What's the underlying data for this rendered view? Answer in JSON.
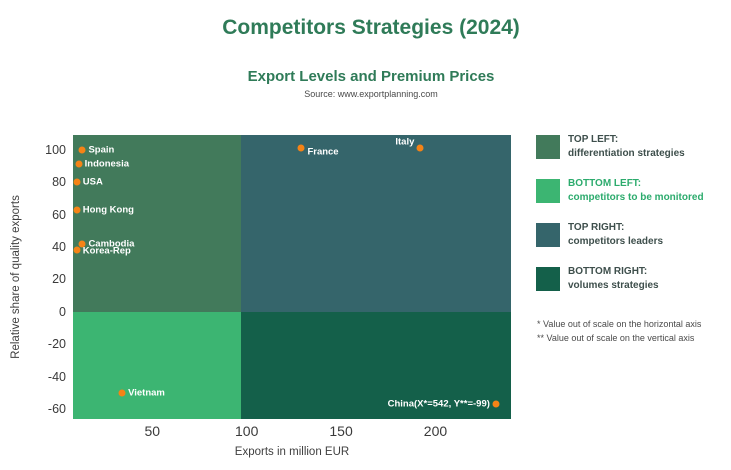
{
  "header": {
    "title": "Competitors Strategies (2024)",
    "subtitle": "Export Levels and Premium Prices",
    "source": "Source: www.exportplanning.com",
    "title_color": "#2f7b58"
  },
  "chart_data": {
    "type": "scatter",
    "title": "Competitors Strategies (2024)",
    "subtitle": "Export Levels and Premium Prices",
    "xlabel": "Exports in million EUR",
    "ylabel": "Relative share of quality exports",
    "x_ticks": [
      50,
      100,
      150,
      200
    ],
    "y_ticks": [
      100,
      80,
      60,
      40,
      20,
      0,
      -20,
      -40,
      -60
    ],
    "xlim": [
      8,
      240
    ],
    "ylim": [
      -66,
      109
    ],
    "grid": false,
    "legend_position": "right",
    "quadrant_split": {
      "x": 97,
      "y": 0
    },
    "quadrant_colors": {
      "top_left": "#427a5b",
      "top_right": "#35656b",
      "bottom_left": "#3cb572",
      "bottom_right": "#14604a"
    },
    "point_color": "#f58316",
    "points": [
      {
        "name": "Spain",
        "x": 13,
        "y": 100,
        "label": "Spain",
        "label_side": "right",
        "label_dy": 0
      },
      {
        "name": "Indonesia",
        "x": 11,
        "y": 91,
        "label": "Indonesia",
        "label_side": "right",
        "label_dy": 0
      },
      {
        "name": "USA",
        "x": 10,
        "y": 80,
        "label": "USA",
        "label_side": "right",
        "label_dy": 0
      },
      {
        "name": "Hong Kong",
        "x": 10,
        "y": 63,
        "label": "Hong Kong",
        "label_side": "right",
        "label_dy": 0
      },
      {
        "name": "Cambodia",
        "x": 13,
        "y": 42,
        "label": "Cambodia",
        "label_side": "right",
        "label_dy": 0
      },
      {
        "name": "Korea-Rep",
        "x": 10,
        "y": 38,
        "label": "Korea-Rep",
        "label_side": "right",
        "label_dy": 1
      },
      {
        "name": "Vietnam",
        "x": 34,
        "y": -50,
        "label": "Vietnam",
        "label_side": "right",
        "label_dy": 0
      },
      {
        "name": "France",
        "x": 129,
        "y": 101,
        "label": "France",
        "label_side": "right",
        "label_dy": 4
      },
      {
        "name": "Italy",
        "x": 192,
        "y": 101,
        "label": "Italy",
        "label_side": "left",
        "label_dy": -6
      },
      {
        "name": "China",
        "x": 232,
        "y": -57,
        "label": "China(X*=542, Y**=-99)",
        "label_side": "left",
        "label_dy": 0
      }
    ]
  },
  "legend": {
    "items": [
      {
        "key": "TOP LEFT:",
        "desc": "differentiation strategies",
        "color": "#427a5b",
        "text_color": "#3e4f4c"
      },
      {
        "key": "BOTTOM LEFT:",
        "desc": "competitors to be monitored",
        "color": "#3cb572",
        "text_color": "#2cab6d"
      },
      {
        "key": "TOP RIGHT:",
        "desc": "competitors leaders",
        "color": "#35656b",
        "text_color": "#3e4f4c"
      },
      {
        "key": "BOTTOM RIGHT:",
        "desc": "volumes strategies",
        "color": "#14604a",
        "text_color": "#3e4f4c"
      }
    ]
  },
  "notes": [
    "* Value out of scale on the horizontal axis",
    "** Value out of scale on the vertical axis"
  ]
}
